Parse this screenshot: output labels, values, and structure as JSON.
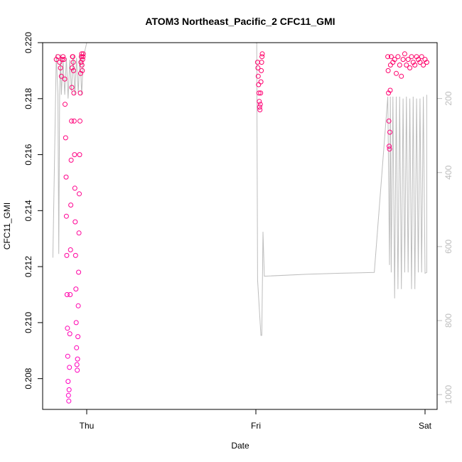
{
  "chart_data": {
    "type": "scatter",
    "title": "ATOM3 Northeast_Pacific_2 CFC11_GMI",
    "xlabel": "Date",
    "ylabel": "CFC11_GMI",
    "x_ticks": [
      "Thu",
      "Fri",
      "Sat"
    ],
    "x_tick_values": [
      0,
      1,
      2
    ],
    "xlim": [
      -0.2,
      2.05
    ],
    "ylim": [
      0.2069,
      0.22
    ],
    "y_ticks": [
      0.208,
      0.21,
      0.212,
      0.214,
      0.216,
      0.218,
      0.22
    ],
    "y_tick_labels": [
      "0.208",
      "0.210",
      "0.212",
      "0.214",
      "0.216",
      "0.218",
      "0.220"
    ],
    "secondary_axis": {
      "side": "right",
      "ticks": [
        200,
        400,
        600,
        800,
        1000
      ],
      "tick_labels": [
        "200",
        "400",
        "600",
        "800",
        "1000"
      ],
      "ylim_reversed": [
        49,
        1040
      ],
      "color": "#bdbdbd"
    },
    "point_colors": {
      "low": "#ff00c8",
      "high": "#ff0064"
    },
    "series": [
      {
        "segment": "Thu profile 1",
        "x": [
          -0.18,
          -0.17,
          -0.16,
          -0.155,
          -0.15,
          -0.145,
          -0.14,
          -0.135,
          -0.13,
          -0.128,
          -0.125,
          -0.122,
          -0.12,
          -0.118,
          -0.116,
          -0.114,
          -0.112,
          -0.11,
          -0.108,
          -0.106,
          -0.104,
          -0.102,
          -0.1,
          -0.098,
          -0.096,
          -0.094,
          -0.092,
          -0.09,
          -0.088,
          -0.086,
          -0.084
        ],
        "y": [
          0.2194,
          0.2195,
          0.2193,
          0.2191,
          0.2188,
          0.2194,
          0.2195,
          0.2194,
          0.2187,
          0.2178,
          0.2166,
          0.2152,
          0.2138,
          0.2124,
          0.211,
          0.2098,
          0.2088,
          0.2079,
          0.2074,
          0.2072,
          0.2076,
          0.2084,
          0.2096,
          0.211,
          0.2126,
          0.2142,
          0.2158,
          0.2172,
          0.2184,
          0.2191,
          0.2195
        ]
      },
      {
        "segment": "Thu profile 2",
        "x": [
          -0.082,
          -0.08,
          -0.078,
          -0.076,
          -0.074,
          -0.072,
          -0.07,
          -0.068,
          -0.066,
          -0.064,
          -0.062,
          -0.06,
          -0.058,
          -0.056,
          -0.054,
          -0.052,
          -0.05,
          -0.048,
          -0.046,
          -0.044,
          -0.042,
          -0.04,
          -0.038,
          -0.036,
          -0.034,
          -0.032,
          -0.03,
          -0.028,
          -0.026,
          -0.024,
          -0.022,
          -0.02
        ],
        "y": [
          0.2195,
          0.2193,
          0.219,
          0.2182,
          0.2172,
          0.216,
          0.2148,
          0.2136,
          0.2124,
          0.2112,
          0.21,
          0.2091,
          0.2085,
          0.2083,
          0.2087,
          0.2095,
          0.2106,
          0.2118,
          0.2132,
          0.2146,
          0.216,
          0.2172,
          0.2182,
          0.2189,
          0.2193,
          0.2195,
          0.2196,
          0.2192,
          0.219,
          0.2194,
          0.2195,
          0.2196
        ]
      },
      {
        "segment": "Fri profile",
        "x": [
          1.01,
          1.012,
          1.014,
          1.016,
          1.018,
          1.02,
          1.022,
          1.024,
          1.026,
          1.028,
          1.03,
          1.032,
          1.034,
          1.036,
          1.038
        ],
        "y": [
          0.2193,
          0.2191,
          0.2188,
          0.2185,
          0.2182,
          0.2179,
          0.2177,
          0.2176,
          0.2178,
          0.2182,
          0.2186,
          0.219,
          0.2193,
          0.2195,
          0.2196
        ]
      },
      {
        "segment": "Sat profiles",
        "x": [
          1.78,
          1.782,
          1.784,
          1.786,
          1.788,
          1.79,
          1.792,
          1.794,
          1.796,
          1.8,
          1.81,
          1.82,
          1.83,
          1.84,
          1.85,
          1.86,
          1.87,
          1.88,
          1.89,
          1.9,
          1.91,
          1.92,
          1.93,
          1.94,
          1.95,
          1.96,
          1.97,
          1.98,
          1.99,
          2.0,
          2.01
        ],
        "y": [
          0.2195,
          0.219,
          0.2182,
          0.2172,
          0.2163,
          0.2162,
          0.2168,
          0.2183,
          0.2192,
          0.2195,
          0.2193,
          0.2194,
          0.2189,
          0.2195,
          0.2192,
          0.2188,
          0.2194,
          0.2196,
          0.2192,
          0.2194,
          0.2191,
          0.2195,
          0.2193,
          0.2192,
          0.2195,
          0.2194,
          0.2193,
          0.2195,
          0.2192,
          0.2194,
          0.2193
        ]
      }
    ],
    "altitude_trace": {
      "axis": "secondary",
      "x": [
        -0.2,
        -0.18,
        -0.17,
        -0.165,
        -0.16,
        -0.155,
        -0.15,
        -0.14,
        -0.13,
        -0.12,
        -0.11,
        -0.1,
        -0.09,
        -0.08,
        -0.07,
        -0.06,
        -0.05,
        -0.04,
        -0.03,
        -0.02,
        0.0,
        0.4,
        1.0,
        1.005,
        1.01,
        1.03,
        1.035,
        1.04,
        1.042,
        1.05,
        1.3,
        1.5,
        1.7,
        1.78,
        1.79,
        1.795,
        1.8,
        1.81,
        1.82,
        1.83,
        1.84,
        1.85,
        1.86,
        1.87,
        1.88,
        1.89,
        1.9,
        1.91,
        1.92,
        1.93,
        1.94,
        1.95,
        1.96,
        1.97,
        1.98,
        1.99,
        2.0,
        2.01,
        2.01
      ],
      "y": [
        630,
        80,
        190,
        620,
        190,
        80,
        190,
        95,
        190,
        90,
        200,
        95,
        180,
        85,
        190,
        90,
        185,
        80,
        190,
        90,
        49,
        49,
        49,
        50,
        690,
        840,
        840,
        650,
        560,
        680,
        675,
        672,
        670,
        195,
        650,
        195,
        670,
        195,
        740,
        195,
        715,
        195,
        715,
        200,
        670,
        195,
        670,
        200,
        715,
        195,
        715,
        200,
        670,
        200,
        670,
        195,
        672,
        670,
        190
      ]
    }
  }
}
